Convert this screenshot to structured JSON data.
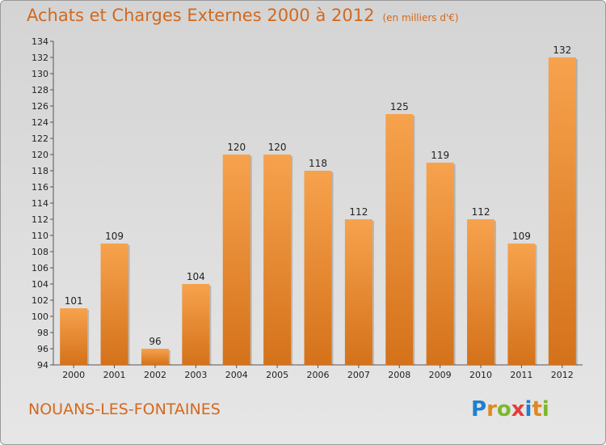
{
  "title": "Achats et Charges Externes 2000 à 2012",
  "subtitle": "(en milliers d'€)",
  "location": "NOUANS-LES-FONTAINES",
  "logo": {
    "text": "Proxiti",
    "letters": [
      "P",
      "r",
      "o",
      "x",
      "i",
      "t",
      "i"
    ],
    "colors": [
      "#1e7fd0",
      "#e0891e",
      "#7bb82a",
      "#e23d3d",
      "#1e7fd0",
      "#e0891e",
      "#7bb82a"
    ]
  },
  "colors": {
    "bar_top": "#f7a24d",
    "bar_bottom": "#d4721a",
    "title": "#d2691e",
    "axis": "#555555"
  },
  "chart_data": {
    "type": "bar",
    "title": "Achats et Charges Externes 2000 à 2012",
    "subtitle": "(en milliers d'€)",
    "categories": [
      "2000",
      "2001",
      "2002",
      "2003",
      "2004",
      "2005",
      "2006",
      "2007",
      "2008",
      "2009",
      "2010",
      "2011",
      "2012"
    ],
    "values": [
      101,
      109,
      96,
      104,
      120,
      120,
      118,
      112,
      125,
      119,
      112,
      109,
      132
    ],
    "ylim": [
      94,
      134
    ],
    "yticks": [
      94,
      96,
      98,
      100,
      102,
      104,
      106,
      108,
      110,
      112,
      114,
      116,
      118,
      120,
      122,
      124,
      126,
      128,
      130,
      132,
      134
    ],
    "data_labels": true,
    "grid": false,
    "legend": "none"
  }
}
